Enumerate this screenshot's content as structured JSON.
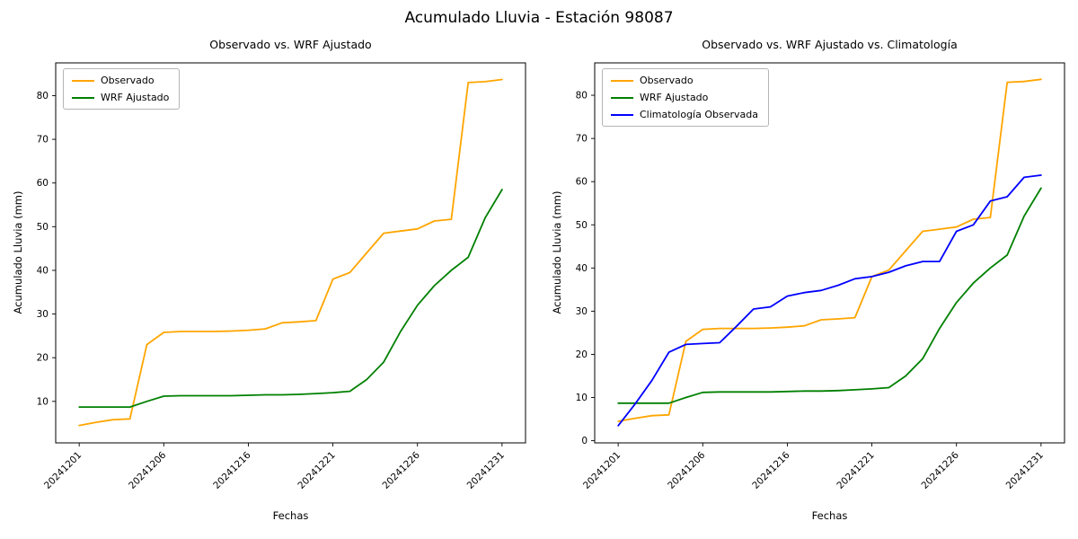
{
  "figure": {
    "title": "Acumulado Lluvia - Estación 98087"
  },
  "chart_data": [
    {
      "type": "line",
      "title": "Observado vs. WRF Ajustado",
      "xlabel": "Fechas",
      "ylabel": "Acumulado Lluvia (mm)",
      "legend_position": "upper left",
      "grid": false,
      "ylim": [
        0.5,
        87.5
      ],
      "yticks": [
        10,
        20,
        30,
        40,
        50,
        60,
        70,
        80
      ],
      "x": [
        "20241201",
        "20241202",
        "20241203",
        "20241204",
        "20241205",
        "20241206",
        "20241208",
        "20241210",
        "20241212",
        "20241214",
        "20241216",
        "20241217",
        "20241218",
        "20241219",
        "20241220",
        "20241221",
        "20241222",
        "20241223",
        "20241224",
        "20241225",
        "20241226",
        "20241227",
        "20241228",
        "20241229",
        "20241230",
        "20241231"
      ],
      "xtick_indices": [
        0,
        5,
        10,
        15,
        20,
        25
      ],
      "xtick_labels": [
        "20241201",
        "20241206",
        "20241216",
        "20241221",
        "20241226",
        "20241231"
      ],
      "series": [
        {
          "name": "Observado",
          "color": "#ffa500",
          "values": [
            4.5,
            5.2,
            5.8,
            6.0,
            23.0,
            25.8,
            26.0,
            26.0,
            26.0,
            26.1,
            26.3,
            26.6,
            28.0,
            28.2,
            28.5,
            38.0,
            39.5,
            44.0,
            48.5,
            49.0,
            49.5,
            51.3,
            51.7,
            83.0,
            83.2,
            83.7
          ]
        },
        {
          "name": "WRF Ajustado",
          "color": "#008000",
          "values": [
            8.7,
            8.7,
            8.7,
            8.7,
            10.0,
            11.2,
            11.3,
            11.3,
            11.3,
            11.3,
            11.4,
            11.5,
            11.5,
            11.6,
            11.8,
            12.0,
            12.3,
            15.0,
            19.0,
            26.0,
            32.0,
            36.5,
            40.0,
            43.0,
            52.0,
            58.5
          ]
        }
      ]
    },
    {
      "type": "line",
      "title": "Observado vs. WRF Ajustado vs. Climatología",
      "xlabel": "Fechas",
      "ylabel": "Acumulado Lluvia (mm)",
      "legend_position": "upper left",
      "grid": false,
      "ylim": [
        -0.5,
        87.5
      ],
      "yticks": [
        0,
        10,
        20,
        30,
        40,
        50,
        60,
        70,
        80
      ],
      "x": [
        "20241201",
        "20241202",
        "20241203",
        "20241204",
        "20241205",
        "20241206",
        "20241208",
        "20241210",
        "20241212",
        "20241214",
        "20241216",
        "20241217",
        "20241218",
        "20241219",
        "20241220",
        "20241221",
        "20241222",
        "20241223",
        "20241224",
        "20241225",
        "20241226",
        "20241227",
        "20241228",
        "20241229",
        "20241230",
        "20241231"
      ],
      "xtick_indices": [
        0,
        5,
        10,
        15,
        20,
        25
      ],
      "xtick_labels": [
        "20241201",
        "20241206",
        "20241216",
        "20241221",
        "20241226",
        "20241231"
      ],
      "series": [
        {
          "name": "Observado",
          "color": "#ffa500",
          "values": [
            4.5,
            5.2,
            5.8,
            6.0,
            23.0,
            25.8,
            26.0,
            26.0,
            26.0,
            26.1,
            26.3,
            26.6,
            28.0,
            28.2,
            28.5,
            38.0,
            39.5,
            44.0,
            48.5,
            49.0,
            49.5,
            51.3,
            51.7,
            83.0,
            83.2,
            83.7
          ]
        },
        {
          "name": "WRF Ajustado",
          "color": "#008000",
          "values": [
            8.7,
            8.7,
            8.7,
            8.7,
            10.0,
            11.2,
            11.3,
            11.3,
            11.3,
            11.3,
            11.4,
            11.5,
            11.5,
            11.6,
            11.8,
            12.0,
            12.3,
            15.0,
            19.0,
            26.0,
            32.0,
            36.5,
            40.0,
            43.0,
            52.0,
            58.5
          ]
        },
        {
          "name": "Climatología Observada",
          "color": "#0000ff",
          "values": [
            3.5,
            8.5,
            14.0,
            20.5,
            22.3,
            22.5,
            22.7,
            26.5,
            30.5,
            31.0,
            33.5,
            34.3,
            34.8,
            36.0,
            37.5,
            38.0,
            39.0,
            40.5,
            41.5,
            41.5,
            48.5,
            50.0,
            55.5,
            56.5,
            61.0,
            61.5
          ]
        }
      ]
    }
  ]
}
